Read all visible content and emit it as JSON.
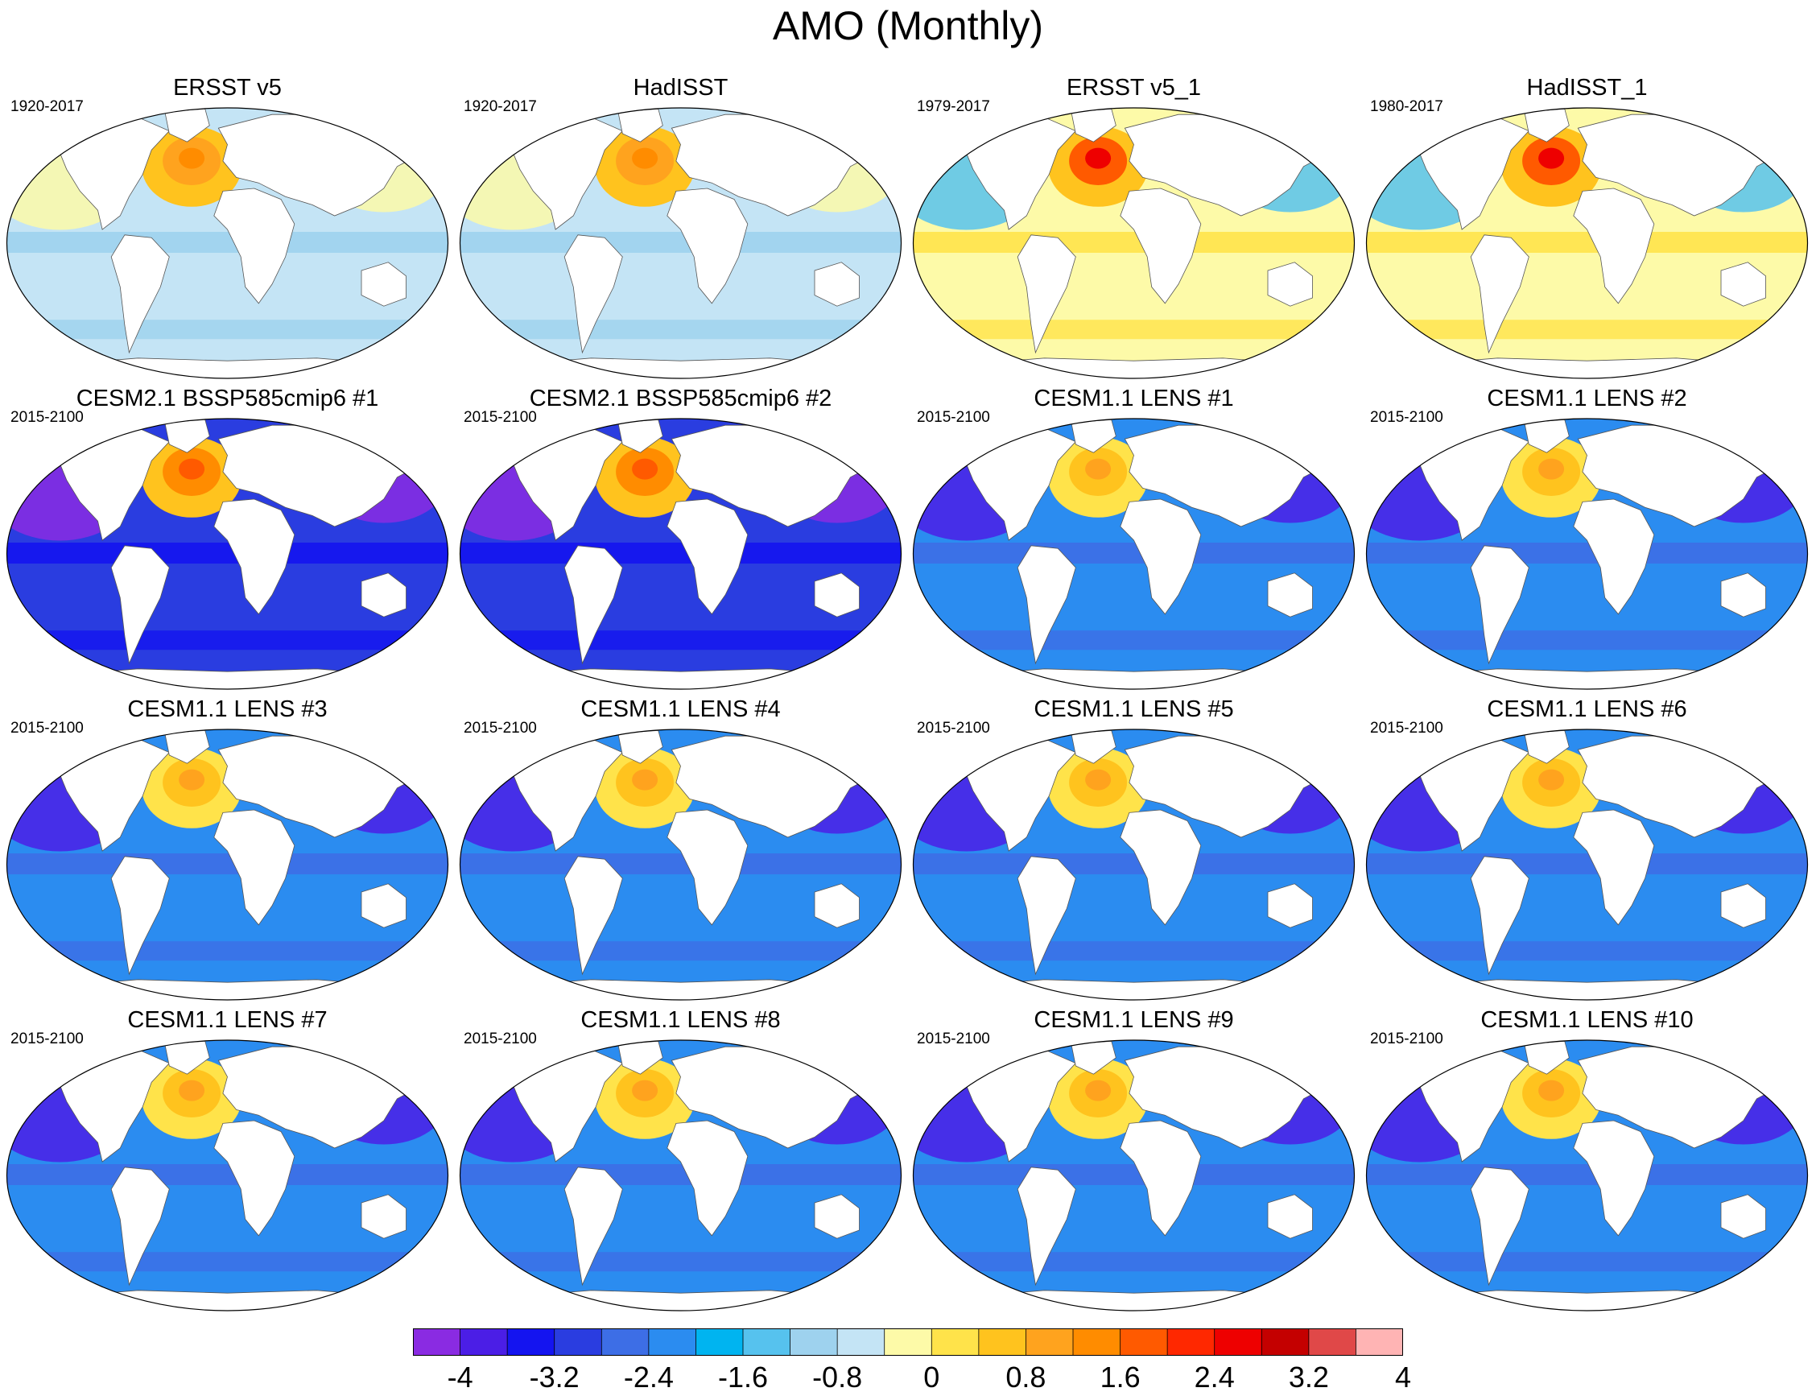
{
  "title": "AMO (Monthly)",
  "panels": [
    {
      "title": "ERSST v5",
      "period": "1920-2017",
      "scheme": "obs1"
    },
    {
      "title": "HadISST",
      "period": "1920-2017",
      "scheme": "obs1"
    },
    {
      "title": "ERSST v5_1",
      "period": "1979-2017",
      "scheme": "obs2"
    },
    {
      "title": "HadISST_1",
      "period": "1980-2017",
      "scheme": "obs2"
    },
    {
      "title": "CESM2.1 BSSP585cmip6 #1",
      "period": "2015-2100",
      "scheme": "cesm2"
    },
    {
      "title": "CESM2.1 BSSP585cmip6 #2",
      "period": "2015-2100",
      "scheme": "cesm2"
    },
    {
      "title": "CESM1.1 LENS #1",
      "period": "2015-2100",
      "scheme": "lens"
    },
    {
      "title": "CESM1.1 LENS #2",
      "period": "2015-2100",
      "scheme": "lens"
    },
    {
      "title": "CESM1.1 LENS #3",
      "period": "2015-2100",
      "scheme": "lens"
    },
    {
      "title": "CESM1.1 LENS #4",
      "period": "2015-2100",
      "scheme": "lens"
    },
    {
      "title": "CESM1.1 LENS #5",
      "period": "2015-2100",
      "scheme": "lens"
    },
    {
      "title": "CESM1.1 LENS #6",
      "period": "2015-2100",
      "scheme": "lens"
    },
    {
      "title": "CESM1.1 LENS #7",
      "period": "2015-2100",
      "scheme": "lens"
    },
    {
      "title": "CESM1.1 LENS #8",
      "period": "2015-2100",
      "scheme": "lens"
    },
    {
      "title": "CESM1.1 LENS #9",
      "period": "2015-2100",
      "scheme": "lens"
    },
    {
      "title": "CESM1.1 LENS #10",
      "period": "2015-2100",
      "scheme": "lens"
    }
  ],
  "colorbar": {
    "colors": [
      "#8a2be2",
      "#4b1ee6",
      "#1414f0",
      "#2a3de0",
      "#3d6ee6",
      "#2b8cf0",
      "#00b4f0",
      "#56c2ee",
      "#9ed2ee",
      "#c4e4f5",
      "#fdfaa8",
      "#ffe34a",
      "#ffc31e",
      "#ffa31e",
      "#ff8c00",
      "#ff5a00",
      "#ff2800",
      "#ee0000",
      "#c40000",
      "#e04848",
      "#ffb4b4"
    ],
    "tick_labels": [
      "-4",
      "-3.2",
      "-2.4",
      "-1.6",
      "-0.8",
      "0",
      "0.8",
      "1.6",
      "2.4",
      "3.2",
      "4"
    ]
  },
  "schemes": {
    "obs1": {
      "ocean": "#c4e4f5",
      "band": "#9ed2ee",
      "warm": "#ffc31e",
      "hot": "#ffa31e",
      "core": "#ff8c00",
      "edge": "#fdfaa8"
    },
    "obs2": {
      "ocean": "#fdfaa8",
      "band": "#ffe34a",
      "warm": "#ffc31e",
      "hot": "#ff5a00",
      "core": "#ee0000",
      "edge": "#56c2ee"
    },
    "cesm2": {
      "ocean": "#2a3de0",
      "band": "#1414f0",
      "warm": "#ffc31e",
      "hot": "#ff8c00",
      "core": "#ff5a00",
      "edge": "#8a2be2"
    },
    "lens": {
      "ocean": "#2b8cf0",
      "band": "#3d6ee6",
      "warm": "#ffe34a",
      "hot": "#ffc31e",
      "core": "#ffa31e",
      "edge": "#4b1ee6"
    }
  }
}
